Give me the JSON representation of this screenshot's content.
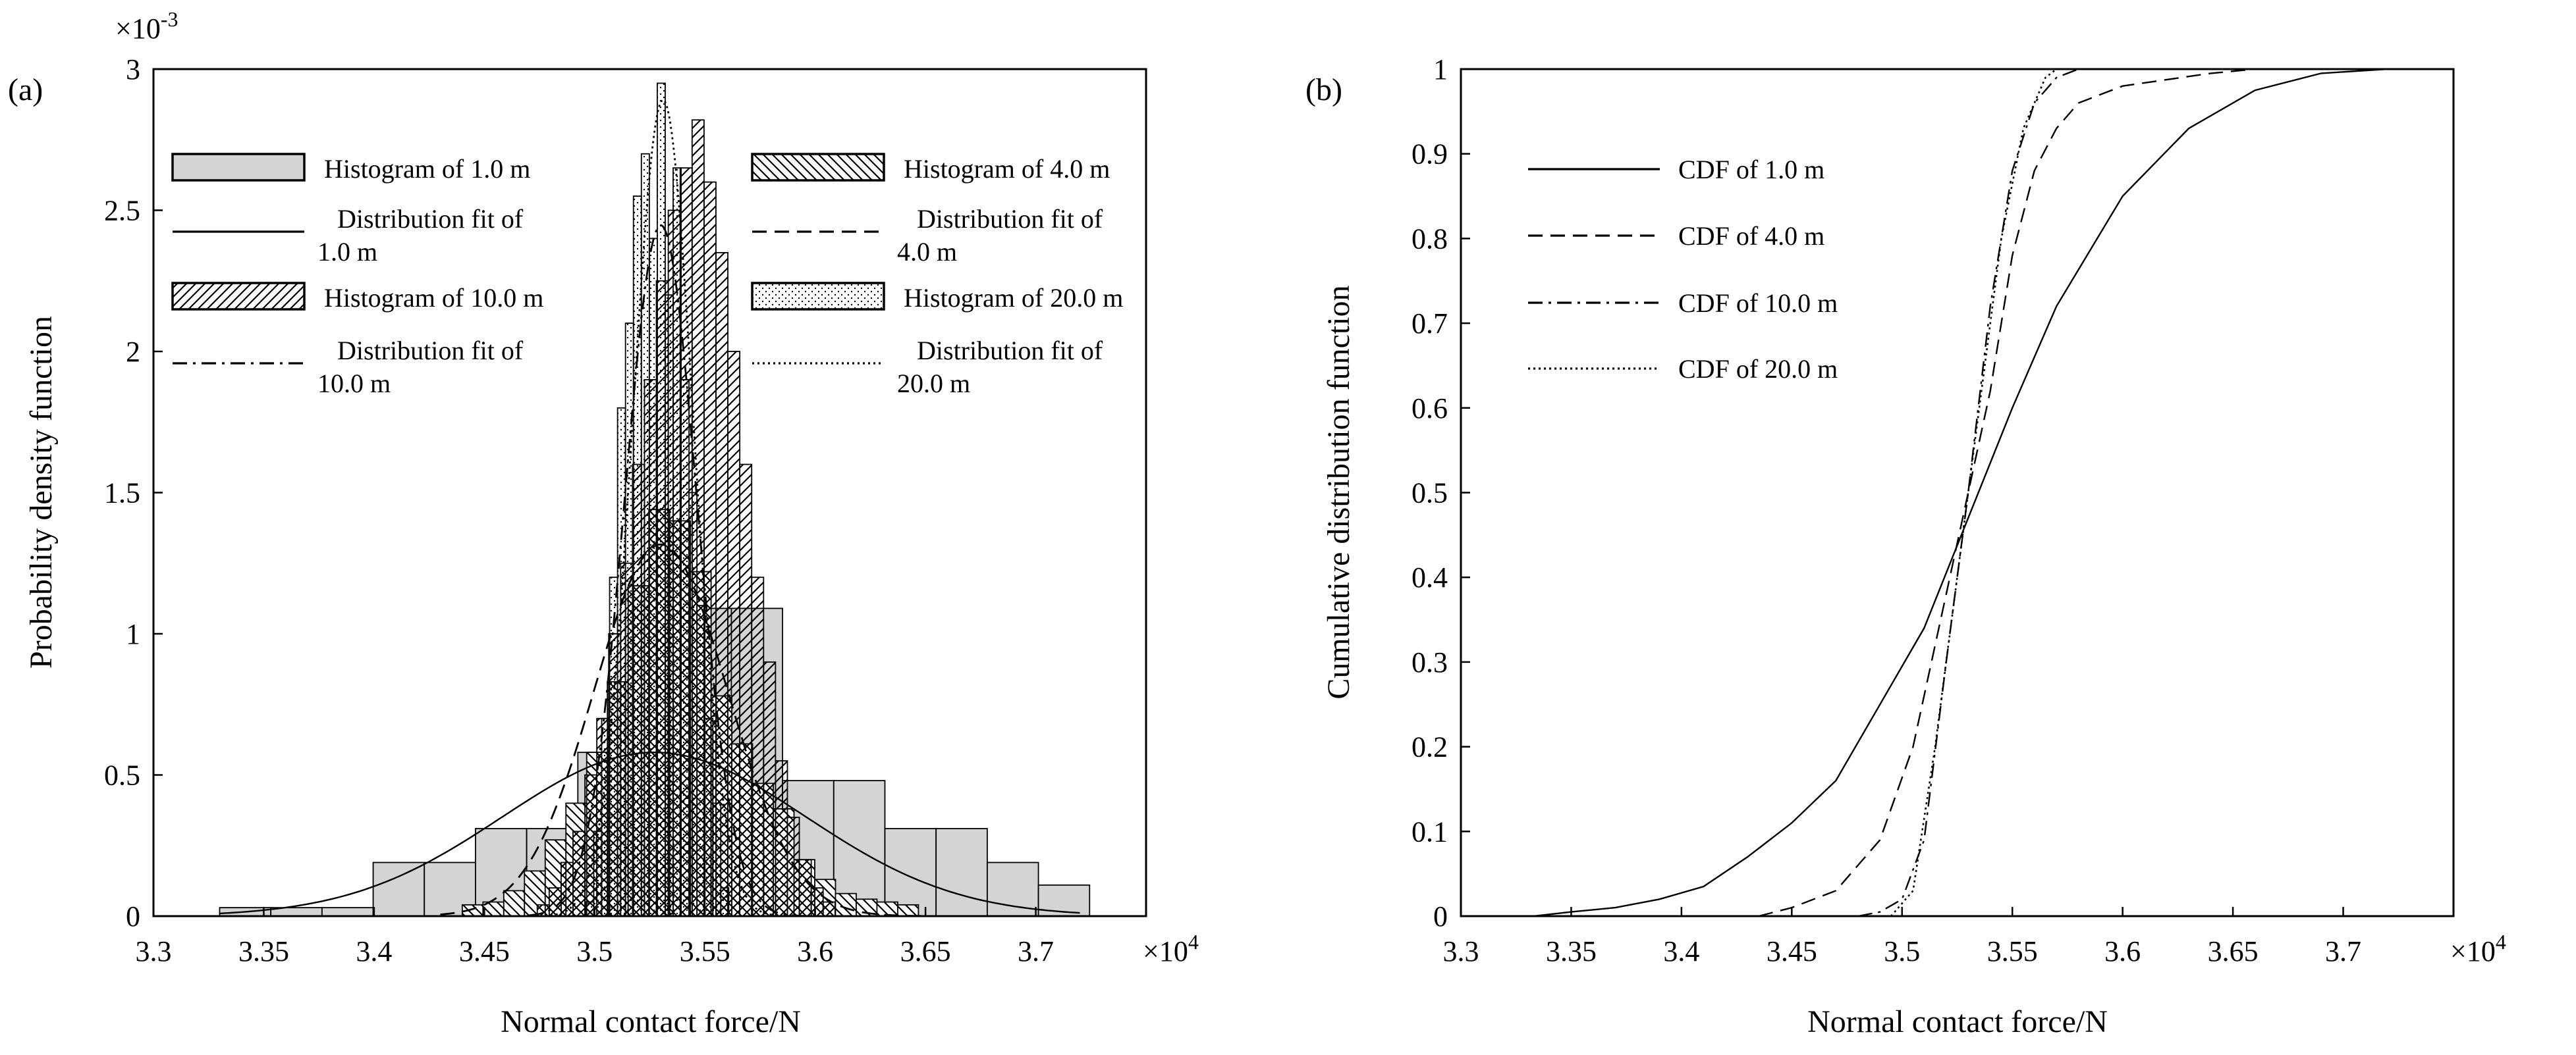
{
  "chart_data": [
    {
      "panel_label": "(a)",
      "type": "histogram",
      "xlabel": "Normal contact force/N",
      "ylabel": "Probability density function",
      "x_multiplier": "×10",
      "x_multiplier_exp": "4",
      "y_multiplier": "×10",
      "y_multiplier_exp": "-3",
      "xlim": [
        3.3,
        3.75
      ],
      "ylim": [
        0,
        3
      ],
      "x_ticks": [
        "3.3",
        "3.35",
        "3.4",
        "3.45",
        "3.5",
        "3.55",
        "3.6",
        "3.65",
        "3.7",
        "3.75"
      ],
      "y_ticks": [
        "0",
        "0.5",
        "1",
        "1.5",
        "2",
        "2.5",
        "3"
      ],
      "legend_position": "top",
      "series": [
        {
          "name": "Histogram of 1.0 m",
          "kind": "histogram",
          "pattern": "gray",
          "bin_start": 3.33,
          "bin_width": 0.0232,
          "values": [
            0.03,
            0.03,
            0.03,
            0.19,
            0.19,
            0.31,
            0.31,
            0.58,
            0.58,
            1.09,
            1.09,
            0.48,
            0.48,
            0.31,
            0.31,
            0.19,
            0.11
          ]
        },
        {
          "name": "Histogram of 4.0 m",
          "kind": "histogram",
          "pattern": "backslash",
          "bin_start": 3.44,
          "bin_width": 0.0094,
          "values": [
            0.04,
            0.05,
            0.09,
            0.16,
            0.27,
            0.4,
            0.58,
            0.83,
            1.17,
            1.44,
            1.4,
            1.22,
            0.78,
            0.61,
            0.47,
            0.38,
            0.2,
            0.13,
            0.08,
            0.06,
            0.05,
            0.04
          ]
        },
        {
          "name": "Histogram of 10.0 m",
          "kind": "histogram",
          "pattern": "slash",
          "bin_start": 3.474,
          "bin_width": 0.0054,
          "values": [
            0.04,
            0.1,
            0.19,
            0.3,
            0.5,
            0.7,
            1.0,
            1.25,
            1.6,
            1.9,
            2.25,
            2.5,
            2.65,
            2.82,
            2.6,
            2.35,
            2.0,
            1.6,
            1.2,
            0.9,
            0.55,
            0.35,
            0.2,
            0.1,
            0.05
          ]
        },
        {
          "name": "Histogram of 20.0 m",
          "kind": "histogram",
          "pattern": "dots",
          "bin_start": 3.496,
          "bin_width": 0.0036,
          "values": [
            0.05,
            0.3,
            0.7,
            1.2,
            1.8,
            2.1,
            2.55,
            2.7,
            2.4,
            2.95,
            2.2,
            2.65,
            1.9,
            1.5,
            1.1,
            0.7,
            0.4,
            0.1
          ]
        },
        {
          "name": "Distribution fit of 1.0 m",
          "kind": "normal_fit",
          "dash": "solid",
          "mean": 3.527,
          "sd": 0.0688,
          "x_range": [
            3.33,
            3.72
          ]
        },
        {
          "name": "Distribution fit of 4.0 m",
          "kind": "normal_fit",
          "dash": "dashed",
          "mean": 3.53,
          "sd": 0.0303,
          "x_range": [
            3.43,
            3.65
          ]
        },
        {
          "name": "Distribution fit of 10.0 m",
          "kind": "normal_fit",
          "dash": "dashdot",
          "mean": 3.53,
          "sd": 0.0163,
          "x_range": [
            3.47,
            3.6
          ]
        },
        {
          "name": "Distribution fit of 20.0 m",
          "kind": "normal_fit",
          "dash": "dotted",
          "mean": 3.531,
          "sd": 0.0138,
          "x_range": [
            3.48,
            3.59
          ]
        }
      ],
      "legend": [
        {
          "kind": "patch",
          "pattern": "gray",
          "lines": [
            "Histogram of 1.0 m"
          ]
        },
        {
          "kind": "line",
          "dash": "solid",
          "lines": [
            "Distribution fit of",
            "1.0 m"
          ]
        },
        {
          "kind": "patch",
          "pattern": "slash",
          "lines": [
            "Histogram of 10.0 m"
          ]
        },
        {
          "kind": "line",
          "dash": "dashdot",
          "lines": [
            "Distribution fit of",
            "10.0 m"
          ]
        },
        {
          "kind": "patch",
          "pattern": "backslash",
          "lines": [
            "Histogram of 4.0 m"
          ]
        },
        {
          "kind": "line",
          "dash": "dashed",
          "lines": [
            "Distribution fit of",
            "4.0 m"
          ]
        },
        {
          "kind": "patch",
          "pattern": "dots",
          "lines": [
            "Histogram of 20.0 m"
          ]
        },
        {
          "kind": "line",
          "dash": "dotted",
          "lines": [
            "Distribution fit of",
            "20.0 m"
          ]
        }
      ]
    },
    {
      "panel_label": "(b)",
      "type": "line",
      "xlabel": "Normal contact force/N",
      "ylabel": "Cumulative distribution function",
      "x_multiplier": "×10",
      "x_multiplier_exp": "4",
      "xlim": [
        3.3,
        3.75
      ],
      "ylim": [
        0,
        1
      ],
      "x_ticks": [
        "3.3",
        "3.35",
        "3.4",
        "3.45",
        "3.5",
        "3.55",
        "3.6",
        "3.65",
        "3.7",
        "3.75"
      ],
      "y_ticks": [
        "0",
        "0.1",
        "0.2",
        "0.3",
        "0.4",
        "0.5",
        "0.6",
        "0.7",
        "0.8",
        "0.9",
        "1"
      ],
      "legend_position": "top-left",
      "series": [
        {
          "name": "CDF of 1.0 m",
          "dash": "solid",
          "points": [
            [
              3.333,
              0.0
            ],
            [
              3.35,
              0.005
            ],
            [
              3.37,
              0.01
            ],
            [
              3.39,
              0.02
            ],
            [
              3.41,
              0.035
            ],
            [
              3.43,
              0.07
            ],
            [
              3.45,
              0.11
            ],
            [
              3.47,
              0.16
            ],
            [
              3.49,
              0.25
            ],
            [
              3.51,
              0.34
            ],
            [
              3.53,
              0.47
            ],
            [
              3.55,
              0.6
            ],
            [
              3.57,
              0.72
            ],
            [
              3.6,
              0.85
            ],
            [
              3.63,
              0.93
            ],
            [
              3.66,
              0.975
            ],
            [
              3.69,
              0.995
            ],
            [
              3.72,
              1.0
            ]
          ]
        },
        {
          "name": "CDF of 4.0 m",
          "dash": "dashed",
          "points": [
            [
              3.435,
              0.0
            ],
            [
              3.45,
              0.01
            ],
            [
              3.47,
              0.03
            ],
            [
              3.49,
              0.09
            ],
            [
              3.505,
              0.2
            ],
            [
              3.52,
              0.38
            ],
            [
              3.53,
              0.5
            ],
            [
              3.54,
              0.62
            ],
            [
              3.55,
              0.78
            ],
            [
              3.56,
              0.88
            ],
            [
              3.57,
              0.93
            ],
            [
              3.58,
              0.96
            ],
            [
              3.6,
              0.98
            ],
            [
              3.64,
              0.995
            ],
            [
              3.66,
              1.0
            ]
          ]
        },
        {
          "name": "CDF of 10.0 m",
          "dash": "dashdot",
          "points": [
            [
              3.48,
              0.0
            ],
            [
              3.49,
              0.005
            ],
            [
              3.5,
              0.02
            ],
            [
              3.51,
              0.09
            ],
            [
              3.52,
              0.3
            ],
            [
              3.53,
              0.5
            ],
            [
              3.54,
              0.72
            ],
            [
              3.55,
              0.88
            ],
            [
              3.56,
              0.96
            ],
            [
              3.57,
              0.99
            ],
            [
              3.58,
              1.0
            ]
          ]
        },
        {
          "name": "CDF of 20.0 m",
          "dash": "dotted",
          "points": [
            [
              3.495,
              0.0
            ],
            [
              3.505,
              0.03
            ],
            [
              3.515,
              0.2
            ],
            [
              3.525,
              0.4
            ],
            [
              3.535,
              0.6
            ],
            [
              3.545,
              0.8
            ],
            [
              3.555,
              0.93
            ],
            [
              3.565,
              0.99
            ],
            [
              3.57,
              1.0
            ]
          ]
        }
      ]
    }
  ]
}
